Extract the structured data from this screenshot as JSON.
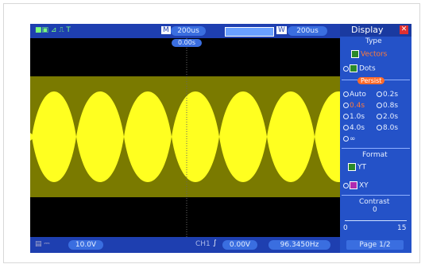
{
  "top_bar": {
    "timebase_label": "M",
    "timebase": "200us",
    "window_label": "W",
    "window": "200us",
    "trigger_position": "0.00s"
  },
  "bottom_bar": {
    "ch1_scale": "10.0V",
    "trigger_source": "CH1",
    "trigger_level": "0.00V",
    "frequency": "96.3450Hz"
  },
  "menu": {
    "title": "Display",
    "type_label": "Type",
    "type_options": [
      "Vectors",
      "Dots"
    ],
    "persist_label": "Persist",
    "persist_options": [
      "Auto",
      "0.2s",
      "0.4s",
      "0.8s",
      "1.0s",
      "2.0s",
      "4.0s",
      "8.0s",
      "∞"
    ],
    "format_label": "Format",
    "format_options": [
      "YT",
      "XY"
    ],
    "contrast_label": "Contrast",
    "contrast_value": "0",
    "contrast_min": "0",
    "contrast_max": "15",
    "page": "Page 1/2"
  }
}
